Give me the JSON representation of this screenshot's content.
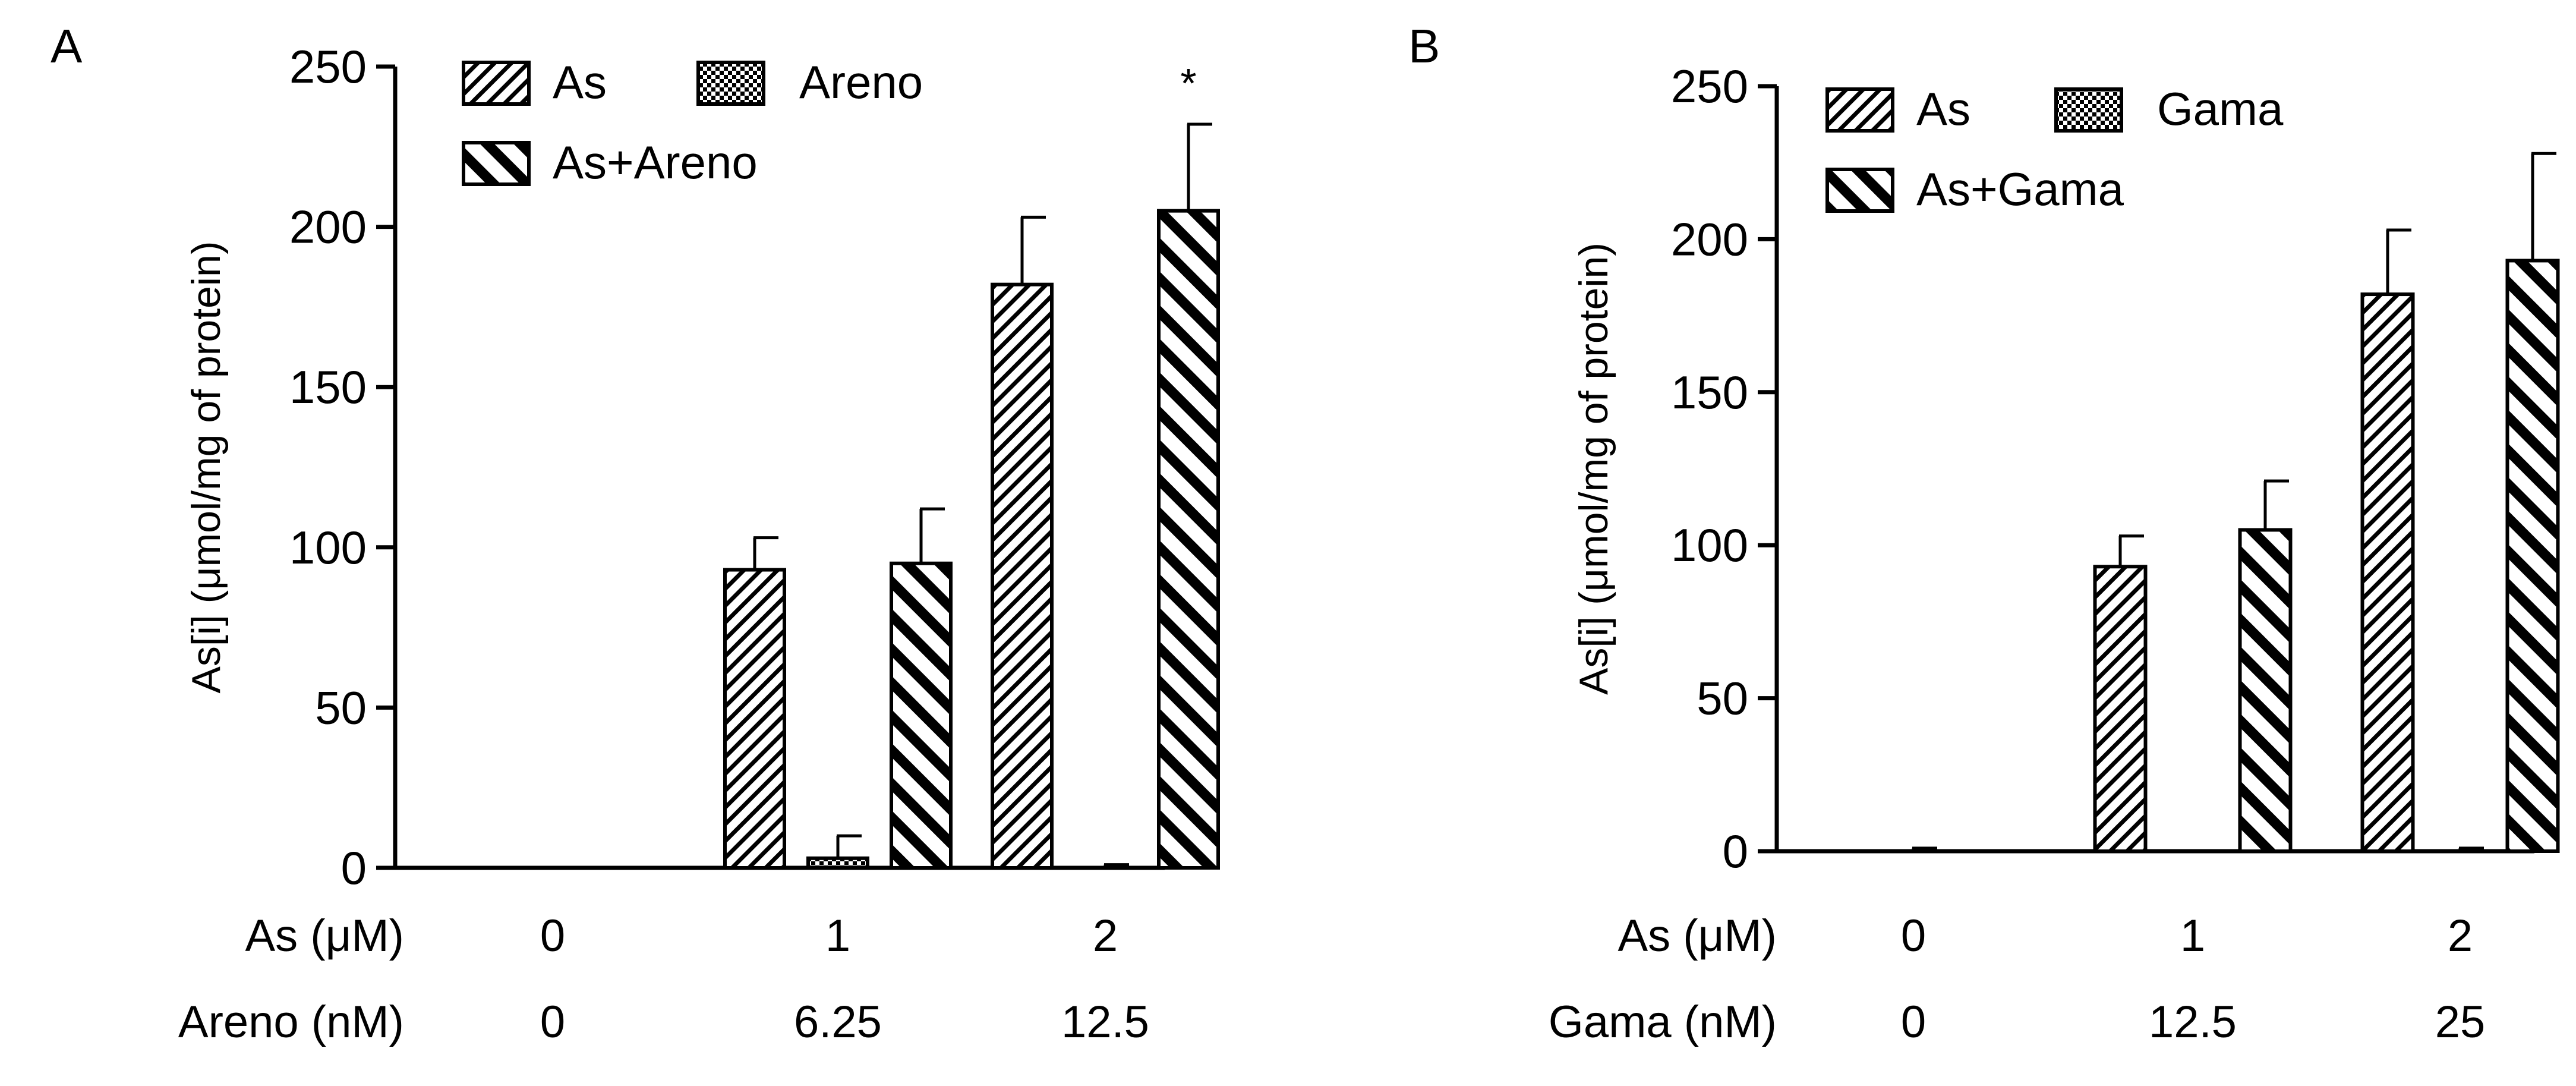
{
  "figure": {
    "background": "#ffffff",
    "ink": "#000000"
  },
  "chart_data": [
    {
      "panel_label": "A",
      "type": "bar",
      "ylabel": "As[i] (μmol/mg of protein)",
      "ylim": [
        0,
        250
      ],
      "yticks": [
        0,
        50,
        100,
        150,
        200,
        250
      ],
      "legend": {
        "position": "top-left",
        "entries": [
          {
            "name": "As",
            "pattern": "diag-fine"
          },
          {
            "name": "Areno",
            "pattern": "checker"
          },
          {
            "name": "As+Areno",
            "pattern": "diag-bold"
          }
        ]
      },
      "condition_rows": [
        {
          "label": "As (μM)",
          "values": [
            "0",
            "1",
            "2"
          ]
        },
        {
          "label": "Areno (nM)",
          "values": [
            "0",
            "6.25",
            "12.5"
          ]
        }
      ],
      "series": [
        {
          "name": "As",
          "values": [
            0,
            93,
            182
          ],
          "errors": [
            0,
            10,
            21
          ],
          "pattern": "diag-fine"
        },
        {
          "name": "Areno",
          "values": [
            0,
            3,
            0
          ],
          "errors": [
            0,
            7,
            1
          ],
          "pattern": "checker"
        },
        {
          "name": "As+Areno",
          "values": [
            0,
            95,
            205
          ],
          "errors": [
            0,
            17,
            27
          ],
          "pattern": "diag-bold"
        }
      ],
      "annotations": [
        {
          "group": 2,
          "series": 2,
          "text": "*"
        }
      ]
    },
    {
      "panel_label": "B",
      "type": "bar",
      "ylabel": "As[i] (μmol/mg of protein)",
      "ylim": [
        0,
        250
      ],
      "yticks": [
        0,
        50,
        100,
        150,
        200,
        250
      ],
      "legend": {
        "position": "top-left",
        "entries": [
          {
            "name": "As",
            "pattern": "diag-fine"
          },
          {
            "name": "Gama",
            "pattern": "checker"
          },
          {
            "name": "As+Gama",
            "pattern": "diag-bold"
          }
        ]
      },
      "condition_rows": [
        {
          "label": "As (μM)",
          "values": [
            "0",
            "1",
            "2"
          ]
        },
        {
          "label": "Gama (nM)",
          "values": [
            "0",
            "12.5",
            "25"
          ]
        }
      ],
      "series": [
        {
          "name": "As",
          "values": [
            0,
            93,
            182
          ],
          "errors": [
            0,
            10,
            21
          ],
          "pattern": "diag-fine"
        },
        {
          "name": "Gama",
          "values": [
            0,
            0,
            0
          ],
          "errors": [
            1,
            0,
            1
          ],
          "pattern": "checker"
        },
        {
          "name": "As+Gama",
          "values": [
            0,
            105,
            193
          ],
          "errors": [
            0,
            16,
            35
          ],
          "pattern": "diag-bold"
        }
      ],
      "annotations": []
    }
  ]
}
